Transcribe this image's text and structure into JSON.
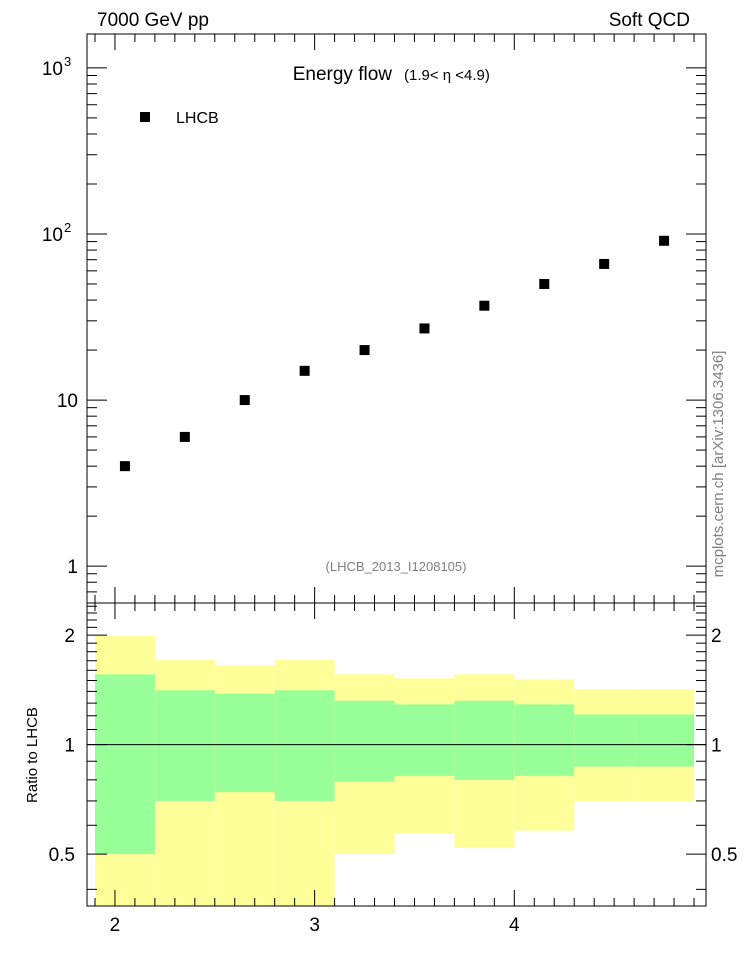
{
  "header": {
    "energy": "7000 GeV pp",
    "process": "Soft QCD"
  },
  "side_label": "mcplots.cern.ch [arXiv:1306.3436]",
  "chart_data": [
    {
      "type": "scatter",
      "title": "Energy flow",
      "title_cut": "(1.9< η <4.9)",
      "annotation": "(LHCB_2013_I1208105)",
      "yscale": "log",
      "ylim": [
        0.6,
        1600
      ],
      "xlim": [
        1.86,
        4.96
      ],
      "grid": false,
      "legend": {
        "placement": "top-left",
        "entries": [
          {
            "name": "LHCB",
            "marker": "square",
            "color": "#000000"
          }
        ]
      },
      "yticks": [
        {
          "value": 1,
          "label": "1"
        },
        {
          "value": 10,
          "label": "10"
        }
      ],
      "yticks_pow": [
        {
          "value": 100,
          "base": "10",
          "exp": "2"
        },
        {
          "value": 1000,
          "base": "10",
          "exp": "3"
        }
      ],
      "series": [
        {
          "name": "LHCB",
          "x": [
            2.05,
            2.35,
            2.65,
            2.95,
            3.25,
            3.55,
            3.85,
            4.15,
            4.45,
            4.75
          ],
          "y": [
            4.0,
            6.0,
            10.0,
            15.0,
            20.0,
            27.0,
            37.0,
            50.0,
            66.0,
            91.0
          ]
        }
      ]
    },
    {
      "type": "area",
      "ylabel": "Ratio to LHCB",
      "yscale": "log",
      "ylim": [
        0.36,
        2.45
      ],
      "xlim": [
        1.86,
        4.96
      ],
      "reference_line": 1,
      "yticks": [
        {
          "value": 0.5,
          "label": "0.5"
        },
        {
          "value": 1,
          "label": "1"
        },
        {
          "value": 2,
          "label": "2"
        }
      ],
      "xticks": [
        {
          "value": 2,
          "label": "2"
        },
        {
          "value": 3,
          "label": "3"
        },
        {
          "value": 4,
          "label": "4"
        }
      ],
      "bins": [
        {
          "lo": 1.9,
          "hi": 2.2,
          "inner_lo": 0.5,
          "inner_hi": 1.56,
          "outer_lo": 0.36,
          "outer_hi": 1.99
        },
        {
          "lo": 2.2,
          "hi": 2.5,
          "inner_lo": 0.7,
          "inner_hi": 1.41,
          "outer_lo": 0.36,
          "outer_hi": 1.71
        },
        {
          "lo": 2.5,
          "hi": 2.8,
          "inner_lo": 0.74,
          "inner_hi": 1.38,
          "outer_lo": 0.36,
          "outer_hi": 1.65
        },
        {
          "lo": 2.8,
          "hi": 3.1,
          "inner_lo": 0.7,
          "inner_hi": 1.41,
          "outer_lo": 0.36,
          "outer_hi": 1.71
        },
        {
          "lo": 3.1,
          "hi": 3.4,
          "inner_lo": 0.79,
          "inner_hi": 1.32,
          "outer_lo": 0.5,
          "outer_hi": 1.56
        },
        {
          "lo": 3.4,
          "hi": 3.7,
          "inner_lo": 0.82,
          "inner_hi": 1.29,
          "outer_lo": 0.57,
          "outer_hi": 1.52
        },
        {
          "lo": 3.7,
          "hi": 4.0,
          "inner_lo": 0.8,
          "inner_hi": 1.32,
          "outer_lo": 0.52,
          "outer_hi": 1.56
        },
        {
          "lo": 4.0,
          "hi": 4.3,
          "inner_lo": 0.82,
          "inner_hi": 1.29,
          "outer_lo": 0.58,
          "outer_hi": 1.51
        },
        {
          "lo": 4.3,
          "hi": 4.6,
          "inner_lo": 0.87,
          "inner_hi": 1.21,
          "outer_lo": 0.7,
          "outer_hi": 1.42
        },
        {
          "lo": 4.6,
          "hi": 4.9,
          "inner_lo": 0.87,
          "inner_hi": 1.21,
          "outer_lo": 0.7,
          "outer_hi": 1.42
        }
      ],
      "colors": {
        "inner": "#99ff99",
        "outer": "#ffff99",
        "line": "#000000"
      }
    }
  ]
}
